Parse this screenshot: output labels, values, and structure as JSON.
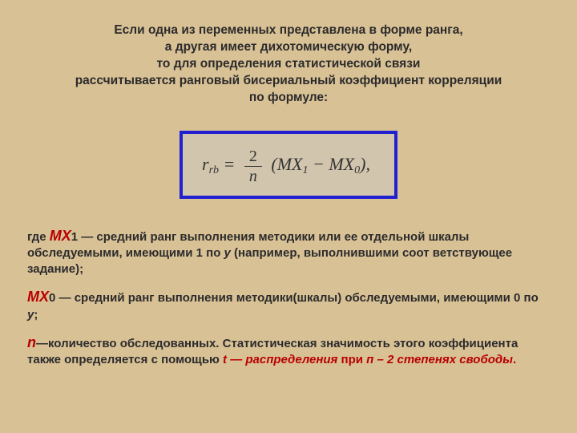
{
  "colors": {
    "background": "#d9c196",
    "formula_border": "#2020d0",
    "formula_bg": "#d2c5ad",
    "text": "#2b2b2b",
    "accent_red": "#b80000"
  },
  "intro_lines": [
    "Если одна из переменных представлена в форме ранга,",
    "а другая имеет дихотомическую форму,",
    "то для определения статистической связи",
    "рассчитывается ранговый бисериальный коэффициент корреляции",
    "по формуле:"
  ],
  "formula": {
    "lhs_var": "r",
    "lhs_sub": "rb",
    "eq": "=",
    "frac_num": "2",
    "frac_den": "n",
    "open": "(",
    "term1_var": "MX",
    "term1_sub": "1",
    "minus": " − ",
    "term2_var": "MX",
    "term2_sub": "0",
    "close": ")",
    "comma": ","
  },
  "para1": {
    "lead": "где ",
    "mx1": "МX",
    "mx1_num": "1",
    "dash": " — ",
    "text_a": "средний ранг выполнения методики или ее отдельной шкалы обследуемыми, имеющими 1 по ",
    "y": "у",
    "text_b": " (например, выполнившими соот ветствующее задание);"
  },
  "para2": {
    "mx0": " МХ",
    "mx0_num": "0",
    "dash": " — ",
    "text_a": "средний ранг выполнения методики(шкалы) обследуемыми, имеющими 0 по ",
    "y": "у",
    "semi": ";"
  },
  "para3": {
    "n": "n",
    "dash": "—",
    "text_a": "количество обследованных. Статистическая значимость этого коэффициента также определяется с помощью ",
    "t_part": "t — распределения",
    "text_b": " при ",
    "dof": "п – 2 степенях свободы",
    "period": "."
  }
}
